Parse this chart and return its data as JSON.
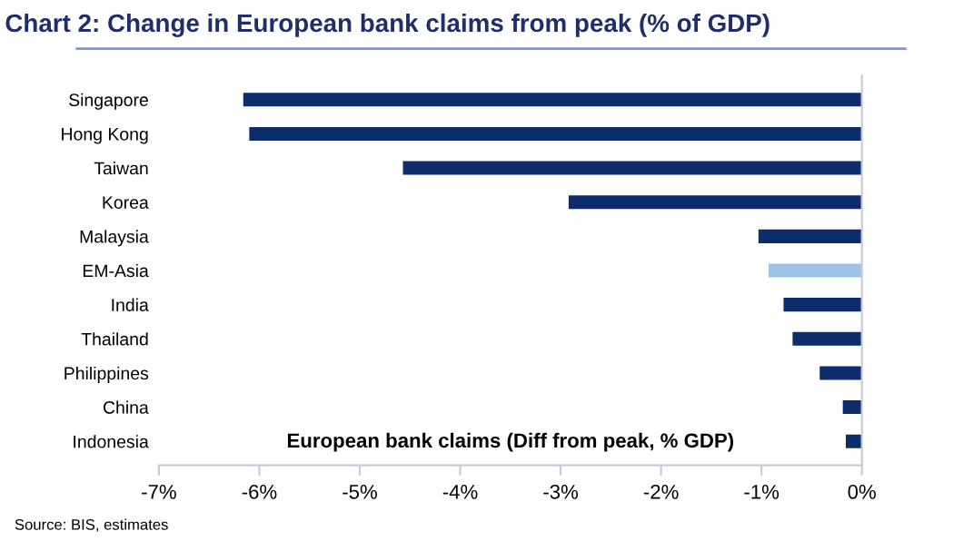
{
  "chart_data": {
    "type": "bar",
    "orientation": "horizontal",
    "title": "Chart 2: Change in European bank claims from peak (% of GDP)",
    "categories": [
      "Singapore",
      "Hong Kong",
      "Taiwan",
      "Korea",
      "Malaysia",
      "EM-Asia",
      "India",
      "Thailand",
      "Philippines",
      "China",
      "Indonesia"
    ],
    "values": [
      -6.16,
      -6.1,
      -4.57,
      -2.92,
      -1.03,
      -0.93,
      -0.78,
      -0.69,
      -0.42,
      -0.19,
      -0.16
    ],
    "colors": [
      "#0d2c6c",
      "#0d2c6c",
      "#0d2c6c",
      "#0d2c6c",
      "#0d2c6c",
      "#9dc3e6",
      "#0d2c6c",
      "#0d2c6c",
      "#0d2c6c",
      "#0d2c6c",
      "#0d2c6c"
    ],
    "xlim": [
      -7,
      0
    ],
    "xticks": [
      {
        "value": -7,
        "label": "-7%"
      },
      {
        "value": -6,
        "label": "-6%"
      },
      {
        "value": -5,
        "label": "-5%"
      },
      {
        "value": -4,
        "label": "-4%"
      },
      {
        "value": -3,
        "label": "-3%"
      },
      {
        "value": -2,
        "label": "-2%"
      },
      {
        "value": -1,
        "label": "-1%"
      },
      {
        "value": 0,
        "label": "0%"
      }
    ],
    "grid": false,
    "legend": false,
    "annotations": [
      "European bank claims (Diff from peak, % GDP)",
      "Source: BIS, estimates"
    ]
  }
}
